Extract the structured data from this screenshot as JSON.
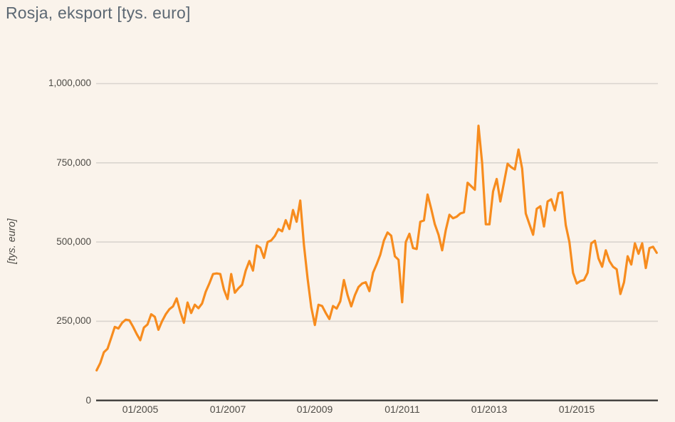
{
  "page": {
    "background": "#FAF3EB"
  },
  "header": {
    "title": "Rosja, eksport [tys. euro]"
  },
  "chart_data": {
    "type": "line",
    "title": "Rosja, eksport [tys. euro]",
    "xlabel": "",
    "ylabel": "[tys. euro]",
    "unit": "tys. euro",
    "line_color": "#F78C1E",
    "grid": "horizontal",
    "legend": "none",
    "ylim": [
      0,
      1000000
    ],
    "y_tick_labels": [
      "1,000,000",
      "750,000",
      "500,000",
      "250,000",
      "0"
    ],
    "y_tick_values": [
      1000000,
      750000,
      500000,
      250000,
      0
    ],
    "x_tick_labels": [
      "01/2005",
      "01/2007",
      "01/2009",
      "01/2011",
      "01/2013",
      "01/2015"
    ],
    "x_start": "01/2004",
    "x_end": "11/2016",
    "x_frequency": "monthly",
    "series": [
      {
        "name": "Rosja, eksport",
        "values": [
          95000,
          118000,
          152000,
          163000,
          197000,
          232000,
          227000,
          245000,
          255000,
          253000,
          233000,
          210000,
          190000,
          230000,
          240000,
          272000,
          264000,
          223000,
          250000,
          272000,
          288000,
          297000,
          322000,
          280000,
          245000,
          309000,
          276000,
          302000,
          291000,
          306000,
          343000,
          369000,
          399000,
          401000,
          399000,
          350000,
          320000,
          399000,
          340000,
          354000,
          365000,
          410000,
          440000,
          410000,
          489000,
          482000,
          450000,
          500000,
          505000,
          519000,
          541000,
          534000,
          569000,
          541000,
          601000,
          564000,
          631000,
          490000,
          385000,
          295000,
          238000,
          302000,
          298000,
          276000,
          257000,
          298000,
          290000,
          313000,
          380000,
          332000,
          297000,
          332000,
          358000,
          369000,
          373000,
          345000,
          403000,
          430000,
          460000,
          505000,
          530000,
          520000,
          455000,
          444000,
          310000,
          500000,
          526000,
          481000,
          478000,
          564000,
          568000,
          650000,
          605000,
          556000,
          523000,
          474000,
          538000,
          586000,
          575000,
          580000,
          590000,
          594000,
          687000,
          676000,
          665000,
          867000,
          750000,
          556000,
          556000,
          660000,
          699000,
          628000,
          687000,
          747000,
          736000,
          729000,
          792000,
          732000,
          590000,
          556000,
          523000,
          605000,
          613000,
          549000,
          628000,
          635000,
          600000,
          654000,
          657000,
          553000,
          500000,
          403000,
          369000,
          377000,
          380000,
          403000,
          496000,
          504000,
          448000,
          422000,
          474000,
          440000,
          422000,
          414000,
          336000,
          373000,
          455000,
          429000,
          496000,
          463000,
          496000,
          418000,
          481000,
          485000,
          466000
        ]
      }
    ]
  }
}
